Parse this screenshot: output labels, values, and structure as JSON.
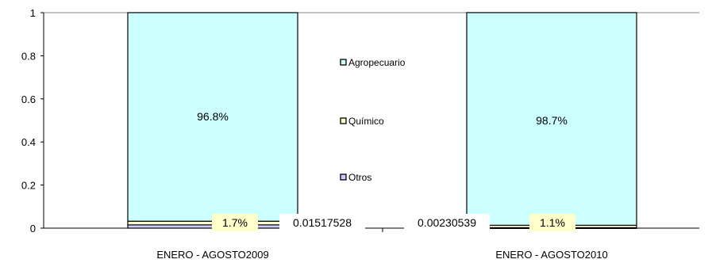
{
  "chart_data": {
    "type": "bar",
    "stacked": true,
    "categories": [
      "ENERO - AGOSTO2009",
      "ENERO - AGOSTO2010"
    ],
    "series": [
      {
        "name": "Otros",
        "values": [
          0.01517528,
          0.00230539
        ],
        "labels": [
          "0.01517528",
          "0.00230539"
        ],
        "color": "#ccccff"
      },
      {
        "name": "Químico",
        "values": [
          0.017,
          0.011
        ],
        "labels": [
          "1.7%",
          "1.1%"
        ],
        "color": "#ffffcc"
      },
      {
        "name": "Agropecuario",
        "values": [
          0.968,
          0.987
        ],
        "labels": [
          "96.8%",
          "98.7%"
        ],
        "color": "#ccffff"
      }
    ],
    "ylim": [
      0,
      1
    ],
    "yticks": [
      "0",
      "0.2",
      "0.4",
      "0.6",
      "0.8",
      "1"
    ],
    "legend_position": "center",
    "colors": {
      "axis": "#000000",
      "gridline": "#808080",
      "label_box": "#ffffcc"
    }
  }
}
